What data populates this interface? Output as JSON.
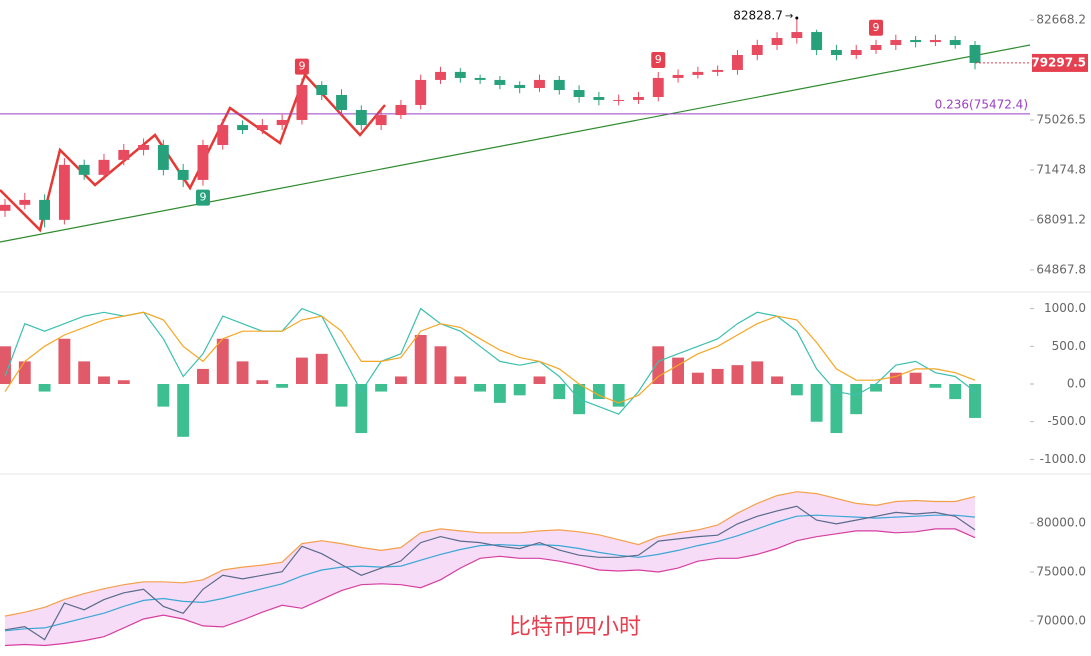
{
  "chart_data": [
    {
      "type": "candlestick",
      "log": true,
      "ylim": [
        63620,
        84290
      ],
      "yticks": [
        82668.2,
        75026.5,
        71474.8,
        68091.2,
        64867.8
      ],
      "up_color": "#e84a5f",
      "down_color": "#26a17b",
      "open": [
        68700,
        69100,
        69430,
        68100,
        71830,
        71140,
        72180,
        72880,
        73230,
        71480,
        70790,
        73230,
        74660,
        74300,
        74660,
        75030,
        77620,
        76870,
        75760,
        74660,
        75390,
        76130,
        78000,
        78610,
        78150,
        78000,
        77620,
        77390,
        78000,
        77240,
        76720,
        76500,
        76500,
        76720,
        78150,
        78380,
        78610,
        78760,
        79910,
        80690,
        81240,
        81710,
        80300,
        79910,
        80300,
        80690,
        81080,
        80920,
        81080,
        80690
      ],
      "high": [
        69500,
        69900,
        69800,
        72300,
        72200,
        72600,
        73300,
        73700,
        73600,
        71900,
        73600,
        75100,
        75000,
        75100,
        75500,
        78100,
        77900,
        77300,
        76100,
        75800,
        76500,
        78400,
        79000,
        78900,
        78400,
        78300,
        77900,
        78400,
        78300,
        77600,
        77100,
        76900,
        77100,
        78600,
        78800,
        79000,
        79100,
        80300,
        81100,
        81700,
        82828.7,
        81900,
        80700,
        80700,
        81100,
        81500,
        81400,
        81500,
        81400,
        81000
      ],
      "low": [
        68300,
        68800,
        67600,
        67800,
        70800,
        70800,
        71800,
        72500,
        71100,
        70300,
        70400,
        72900,
        74000,
        74000,
        74300,
        74700,
        76500,
        75400,
        74300,
        74300,
        75100,
        75800,
        77700,
        77800,
        77700,
        77300,
        77000,
        77100,
        76900,
        76300,
        76100,
        76100,
        76200,
        76400,
        77800,
        78100,
        78300,
        78400,
        79500,
        80300,
        80800,
        79900,
        79500,
        79600,
        80000,
        80300,
        80500,
        80600,
        80400,
        78800
      ],
      "close": [
        69100,
        69430,
        68100,
        71830,
        71140,
        72180,
        72880,
        73230,
        71480,
        70790,
        73230,
        74660,
        74300,
        74660,
        75030,
        77620,
        76870,
        75760,
        74660,
        75390,
        76130,
        78000,
        78610,
        78150,
        78000,
        77620,
        77390,
        78000,
        77240,
        76720,
        76500,
        76500,
        76720,
        78150,
        78380,
        78610,
        78760,
        79910,
        80690,
        81240,
        81710,
        80300,
        79910,
        80300,
        80690,
        81080,
        80920,
        81080,
        80690,
        79297.5
      ],
      "high_marker": 82828.7,
      "last_price": 79297.5,
      "last_price_color": "#e5404f",
      "fib_level": {
        "value": 75472.4,
        "label": "0.236(75472.4)",
        "color": "#9b3fc4"
      },
      "td_markers": [
        {
          "label": "9",
          "color": "#26a17b"
        },
        {
          "label": "9",
          "color": "#e5404f"
        },
        {
          "label": "9",
          "color": "#e5404f"
        },
        {
          "label": "9",
          "color": "#e5404f"
        }
      ]
    },
    {
      "type": "macd",
      "ylim": [
        -1140,
        1180
      ],
      "yticks": [
        {
          "value": 1000,
          "label": "1000.0"
        },
        {
          "value": 500,
          "label": "500.0"
        },
        {
          "value": 0,
          "label": "0.0"
        },
        {
          "value": -500,
          "label": "-500.0"
        },
        {
          "value": -1000,
          "label": "-1000.0"
        }
      ],
      "pos_color": "#e05a6a",
      "neg_color": "#3dbf91",
      "hist": [
        500,
        300,
        -100,
        600,
        300,
        100,
        50,
        0,
        -300,
        -700,
        200,
        600,
        300,
        50,
        -50,
        350,
        400,
        -300,
        -650,
        -100,
        100,
        650,
        500,
        100,
        -100,
        -250,
        -150,
        100,
        -200,
        -400,
        -200,
        -300,
        0,
        500,
        350,
        150,
        200,
        250,
        300,
        100,
        -150,
        -500,
        -650,
        -400,
        -100,
        150,
        150,
        -50,
        -200,
        -450
      ],
      "series": [
        {
          "color": "#3cc0b0",
          "values": [
            100,
            800,
            700,
            800,
            900,
            950,
            900,
            950,
            600,
            100,
            400,
            900,
            800,
            700,
            700,
            1000,
            900,
            400,
            -100,
            300,
            400,
            1000,
            800,
            700,
            500,
            300,
            250,
            300,
            100,
            -200,
            -300,
            -400,
            -100,
            300,
            400,
            500,
            600,
            800,
            950,
            900,
            700,
            200,
            -100,
            -150,
            0,
            250,
            300,
            150,
            100,
            -100
          ]
        },
        {
          "color": "#f5a623",
          "values": [
            -100,
            300,
            500,
            650,
            750,
            850,
            900,
            950,
            850,
            500,
            300,
            600,
            700,
            700,
            700,
            850,
            900,
            700,
            300,
            300,
            350,
            700,
            800,
            750,
            600,
            450,
            350,
            300,
            200,
            0,
            -150,
            -250,
            -150,
            100,
            250,
            400,
            500,
            650,
            800,
            900,
            850,
            550,
            200,
            50,
            50,
            100,
            200,
            200,
            150,
            50
          ]
        }
      ]
    },
    {
      "type": "band",
      "ylim": [
        67040,
        84390
      ],
      "yticks": [
        {
          "value": 80000,
          "label": "80000.0"
        },
        {
          "value": 75000,
          "label": "75000.0"
        },
        {
          "value": 70000,
          "label": "70000.0"
        }
      ],
      "fill": "#f6dcf7",
      "close": {
        "color": "#5a6b8c",
        "values": [
          69100,
          69430,
          68100,
          71830,
          71140,
          72180,
          72880,
          73230,
          71480,
          70790,
          73230,
          74660,
          74300,
          74660,
          75030,
          77620,
          76870,
          75760,
          74660,
          75390,
          76130,
          78000,
          78610,
          78150,
          78000,
          77620,
          77390,
          78000,
          77240,
          76720,
          76500,
          76500,
          76720,
          78150,
          78380,
          78610,
          78760,
          79910,
          80690,
          81240,
          81710,
          80300,
          79910,
          80300,
          80690,
          81080,
          80920,
          81080,
          80690,
          79297.5
        ]
      },
      "upper": {
        "color": "#f4a04a",
        "values": [
          70500,
          70900,
          71400,
          72200,
          72800,
          73300,
          73700,
          74000,
          74000,
          73900,
          74200,
          75200,
          75500,
          75700,
          76000,
          77900,
          78200,
          77900,
          77500,
          77200,
          77500,
          79000,
          79400,
          79200,
          79000,
          79000,
          79000,
          79200,
          79300,
          79100,
          78800,
          78300,
          77800,
          78600,
          79000,
          79300,
          79800,
          81000,
          82000,
          82800,
          83200,
          83000,
          82500,
          82000,
          81800,
          82200,
          82300,
          82200,
          82200,
          82700
        ]
      },
      "middle": {
        "color": "#3aa7d6",
        "values": [
          69000,
          69200,
          69300,
          69800,
          70300,
          70800,
          71500,
          72100,
          72300,
          72000,
          71900,
          72300,
          72800,
          73300,
          73800,
          74600,
          75200,
          75500,
          75600,
          75500,
          75600,
          76200,
          76800,
          77300,
          77700,
          77800,
          77700,
          77800,
          77700,
          77400,
          77000,
          76700,
          76500,
          76800,
          77200,
          77700,
          78100,
          78700,
          79400,
          80100,
          80700,
          80800,
          80700,
          80600,
          80500,
          80600,
          80700,
          80800,
          80800,
          80600
        ]
      },
      "lower": {
        "color": "#d63fa0",
        "values": [
          67500,
          67600,
          67500,
          67700,
          68000,
          68400,
          69300,
          70200,
          70600,
          70200,
          69500,
          69400,
          70100,
          70900,
          71600,
          71300,
          72200,
          73100,
          73700,
          73800,
          73700,
          73400,
          74200,
          75400,
          76400,
          76600,
          76400,
          76400,
          76100,
          75700,
          75200,
          75100,
          75200,
          75000,
          75400,
          76100,
          76400,
          76400,
          76800,
          77400,
          78200,
          78600,
          78900,
          79200,
          79200,
          79000,
          79100,
          79400,
          79400,
          78500
        ]
      },
      "watermark": "比特币四小时"
    }
  ]
}
